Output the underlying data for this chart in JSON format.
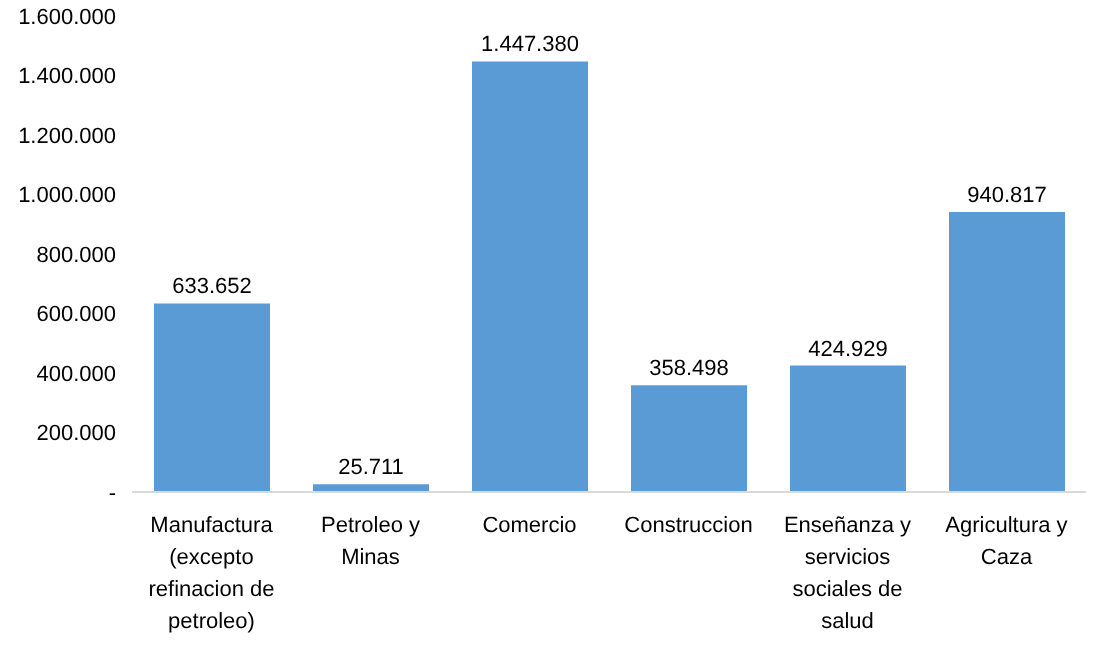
{
  "chart_data": {
    "type": "bar",
    "categories": [
      "Manufactura (excepto refinacion de petroleo)",
      "Petroleo y Minas",
      "Comercio",
      "Construccion",
      "Enseñanza y servicios sociales de salud",
      "Agricultura y Caza"
    ],
    "values": [
      633652,
      25711,
      1447380,
      358498,
      424929,
      940817
    ],
    "value_labels": [
      "633.652",
      "25.711",
      "1.447.380",
      "358.498",
      "424.929",
      "940.817"
    ],
    "color": "#5b9bd5",
    "ylim": [
      0,
      1600000
    ],
    "yticks": [
      {
        "value": 0,
        "label": "-"
      },
      {
        "value": 200000,
        "label": "200.000"
      },
      {
        "value": 400000,
        "label": "400.000"
      },
      {
        "value": 600000,
        "label": "600.000"
      },
      {
        "value": 800000,
        "label": "800.000"
      },
      {
        "value": 1000000,
        "label": "1.000.000"
      },
      {
        "value": 1200000,
        "label": "1.200.000"
      },
      {
        "value": 1400000,
        "label": "1.400.000"
      },
      {
        "value": 1600000,
        "label": "1.600.000"
      }
    ],
    "grid": false,
    "legend": false
  }
}
